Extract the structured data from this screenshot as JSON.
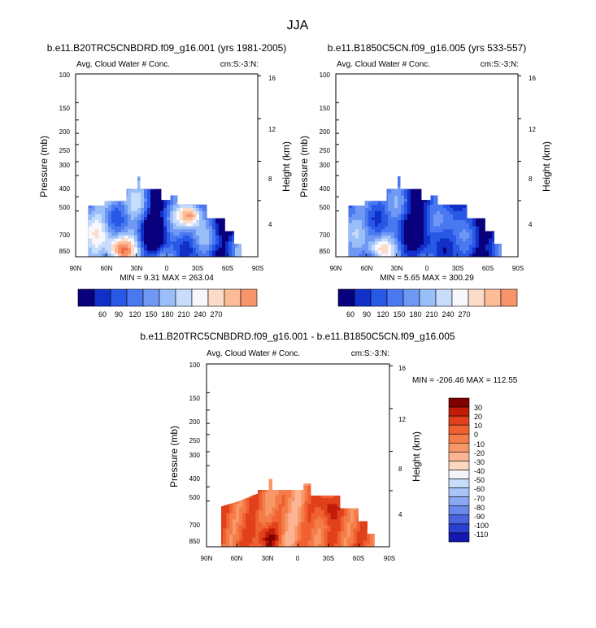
{
  "page_title": "JJA",
  "chart_data": [
    {
      "type": "heatmap",
      "title": "b.e11.B20TRC5CNBDRD.f09_g16.001 (yrs 1981-2005)",
      "subtitle_left": "Avg. Cloud Water # Conc.",
      "subtitle_right": "cm:S:-3:N:",
      "ylabel": "Pressure (mb)",
      "ylabel_right": "Height (km)",
      "x_ticks": [
        "90N",
        "60N",
        "30N",
        "0",
        "30S",
        "60S",
        "90S"
      ],
      "y_ticks": [
        "100",
        "150",
        "200",
        "250",
        "300",
        "400",
        "500",
        "700",
        "850"
      ],
      "y_ticks_right": [
        "16",
        "12",
        "8",
        "4"
      ],
      "min": 9.31,
      "max": 263.04,
      "stats_text": "MIN =   9.31   MAX = 263.04",
      "colorbar_labels": [
        "60",
        "90",
        "120",
        "150",
        "180",
        "210",
        "240",
        "270"
      ]
    },
    {
      "type": "heatmap",
      "title": "b.e11.B1850C5CN.f09_g16.005 (yrs 533-557)",
      "subtitle_left": "Avg. Cloud Water # Conc.",
      "subtitle_right": "cm:S:-3:N:",
      "ylabel": "Pressure (mb)",
      "ylabel_right": "Height (km)",
      "x_ticks": [
        "90N",
        "60N",
        "30N",
        "0",
        "30S",
        "60S",
        "90S"
      ],
      "y_ticks": [
        "100",
        "150",
        "200",
        "250",
        "300",
        "400",
        "500",
        "700",
        "850"
      ],
      "y_ticks_right": [
        "16",
        "12",
        "8",
        "4"
      ],
      "min": 5.65,
      "max": 300.29,
      "stats_text": "MIN =   5.65   MAX = 300.29",
      "colorbar_labels": [
        "60",
        "90",
        "120",
        "150",
        "180",
        "210",
        "240",
        "270"
      ]
    },
    {
      "type": "heatmap",
      "title": "b.e11.B20TRC5CNBDRD.f09_g16.001 - b.e11.B1850C5CN.f09_g16.005",
      "subtitle_left": "Avg. Cloud Water # Conc.",
      "subtitle_right": "cm:S:-3:N:",
      "ylabel": "Pressure (mb)",
      "ylabel_right": "Height (km)",
      "x_ticks": [
        "90N",
        "60N",
        "30N",
        "0",
        "30S",
        "60S",
        "90S"
      ],
      "y_ticks": [
        "100",
        "150",
        "200",
        "250",
        "300",
        "400",
        "500",
        "700",
        "850"
      ],
      "y_ticks_right": [
        "16",
        "12",
        "8",
        "4"
      ],
      "min": -206.46,
      "max": 112.55,
      "stats_text": "MIN = -206.46   MAX = 112.55",
      "colorbar_labels": [
        "30",
        "20",
        "10",
        "0",
        "-10",
        "-20",
        "-30",
        "-40",
        "-50",
        "-60",
        "-70",
        "-80",
        "-90",
        "-100",
        "-110"
      ]
    }
  ],
  "colors": {
    "seq": [
      "#08007d",
      "#1030c8",
      "#2858e6",
      "#4a78f0",
      "#6e98f4",
      "#9abef8",
      "#c8dcfc",
      "#f8f8fc",
      "#fcdcc8",
      "#fcbc98",
      "#f8946a",
      "#f06a42",
      "#e03a1c",
      "#b81208",
      "#800000"
    ],
    "diff": [
      "#800000",
      "#c01c08",
      "#e0401c",
      "#f06030",
      "#f47c48",
      "#f89868",
      "#fcb494",
      "#fcd8c0",
      "#f4f4f8",
      "#c8dcfc",
      "#a8c4f8",
      "#88a8f4",
      "#6888ec",
      "#4864e0",
      "#2a40d0",
      "#1418b0",
      "#08007d"
    ]
  }
}
